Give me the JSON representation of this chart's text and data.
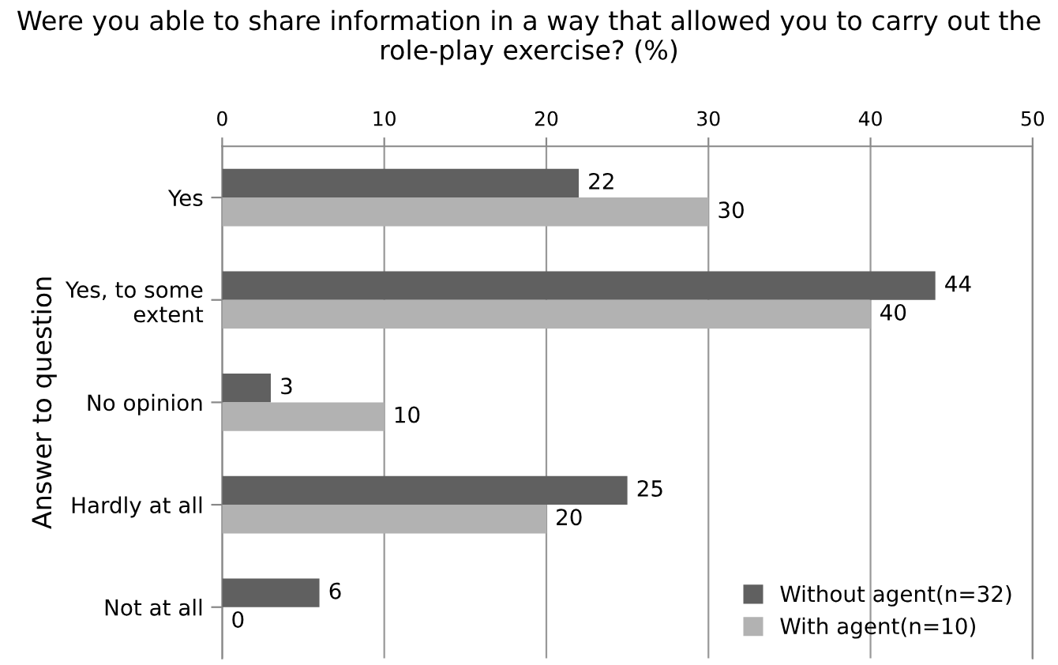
{
  "chart_data": {
    "type": "bar",
    "orientation": "horizontal",
    "title": "Were you able to share information in a way that allowed you to carry out the role-play exercise? (%)",
    "ylabel": "Answer to question",
    "categories": [
      "Yes",
      "Yes, to some\nextent",
      "No opinion",
      "Hardly at all",
      "Not at all"
    ],
    "series": [
      {
        "name": "Without agent(n=32)",
        "color": "#606060",
        "values": [
          22,
          44,
          3,
          25,
          6
        ]
      },
      {
        "name": "With agent(n=10)",
        "color": "#b2b2b2",
        "values": [
          30,
          40,
          10,
          20,
          0
        ]
      }
    ],
    "xlim": [
      0,
      50
    ],
    "xticks": [
      0,
      10,
      20,
      30,
      40,
      50
    ],
    "grid": "x",
    "legend": "bottom right",
    "data_labels": true
  }
}
